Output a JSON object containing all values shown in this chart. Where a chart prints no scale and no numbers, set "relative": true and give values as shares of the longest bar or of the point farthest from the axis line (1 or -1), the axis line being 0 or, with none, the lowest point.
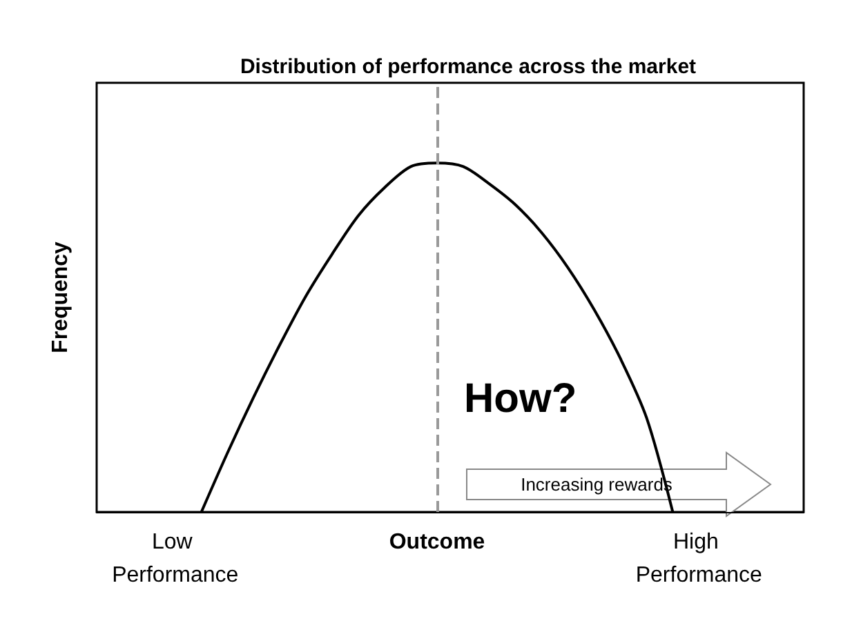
{
  "chart_data": {
    "type": "line",
    "relative": true,
    "title": "Distribution of performance across the market",
    "ylabel": "Frequency",
    "categories": [
      null,
      null,
      null,
      "Low Performance",
      null,
      null,
      null,
      null,
      null,
      null,
      null,
      null,
      null,
      "Outcome",
      null,
      null,
      null,
      null,
      null,
      null,
      null,
      null,
      null,
      "High Performance",
      null,
      null,
      null,
      null
    ],
    "series": [
      {
        "color": "#000000",
        "values": [
          null,
          null,
          null,
          null,
          0,
          0.17,
          0.33,
          0.48,
          0.62,
          0.74,
          0.85,
          0.93,
          0.99,
          1,
          0.99,
          0.94,
          0.88,
          0.8,
          0.7,
          0.58,
          0.44,
          0.27,
          0,
          null,
          null,
          null,
          null,
          null
        ]
      }
    ],
    "marker": "none",
    "line_style": "solid",
    "ref_lines": [
      {
        "axis": "x",
        "value": "Outcome",
        "color": "#999999",
        "line_style": "dashed"
      }
    ],
    "annotations": [
      "How?",
      "Increasing rewards"
    ]
  }
}
